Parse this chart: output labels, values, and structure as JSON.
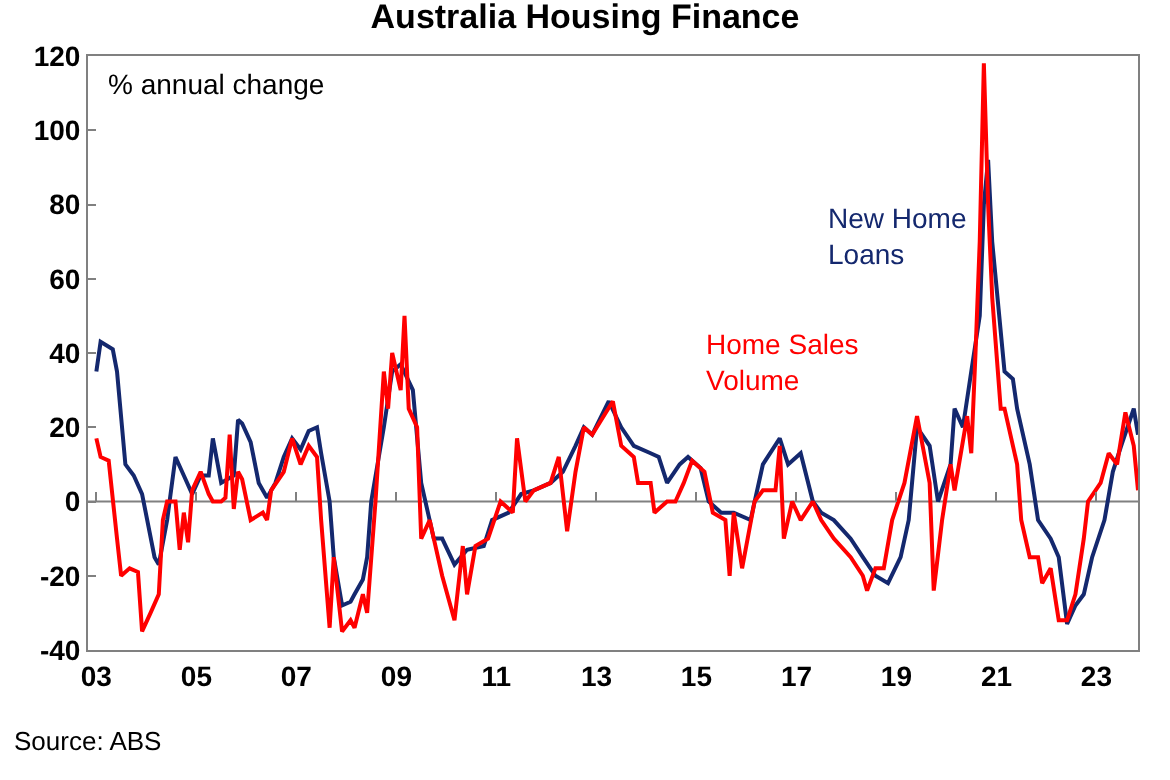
{
  "chart_data": {
    "type": "line",
    "title": "Australia Housing Finance",
    "ylabel": "% annual change",
    "annotations": [
      "Source: ABS"
    ],
    "xlim": [
      "2002-11",
      "2023-11"
    ],
    "xticks": [
      {
        "value": "2003-01",
        "label": "03"
      },
      {
        "value": "2005-01",
        "label": "05"
      },
      {
        "value": "2007-01",
        "label": "07"
      },
      {
        "value": "2009-01",
        "label": "09"
      },
      {
        "value": "2011-01",
        "label": "11"
      },
      {
        "value": "2013-01",
        "label": "13"
      },
      {
        "value": "2015-01",
        "label": "15"
      },
      {
        "value": "2017-01",
        "label": "17"
      },
      {
        "value": "2019-01",
        "label": "19"
      },
      {
        "value": "2021-01",
        "label": "21"
      },
      {
        "value": "2023-01",
        "label": "23"
      }
    ],
    "ylim": [
      -40,
      120
    ],
    "yticks": [
      -40,
      -20,
      0,
      20,
      40,
      60,
      80,
      100,
      120
    ],
    "ref_lines": [
      {
        "axis": "y",
        "value": 0,
        "color": "#808080"
      }
    ],
    "marker": "none",
    "line_style": "solid",
    "series": [
      {
        "name": "New Home Loans",
        "color": "#14286e",
        "x": [
          "2003-01",
          "2003-02",
          "2003-05",
          "2003-06",
          "2003-08",
          "2003-10",
          "2003-12",
          "2004-03",
          "2004-04",
          "2004-06",
          "2004-08",
          "2004-10",
          "2004-12",
          "2005-02",
          "2005-04",
          "2005-05",
          "2005-07",
          "2005-10",
          "2005-11",
          "2005-12",
          "2006-02",
          "2006-04",
          "2006-06",
          "2006-08",
          "2006-10",
          "2006-12",
          "2007-02",
          "2007-04",
          "2007-06",
          "2007-07",
          "2007-09",
          "2007-10",
          "2007-12",
          "2008-02",
          "2008-03",
          "2008-05",
          "2008-06",
          "2008-07",
          "2008-10",
          "2008-12",
          "2009-02",
          "2009-05",
          "2009-07",
          "2009-10",
          "2009-12",
          "2010-03",
          "2010-06",
          "2010-10",
          "2010-12",
          "2011-04",
          "2011-07",
          "2011-10",
          "2012-02",
          "2012-05",
          "2012-08",
          "2012-10",
          "2012-12",
          "2013-04",
          "2013-07",
          "2013-10",
          "2014-02",
          "2014-04",
          "2014-06",
          "2014-09",
          "2014-11",
          "2015-02",
          "2015-04",
          "2015-07",
          "2015-10",
          "2016-02",
          "2016-05",
          "2016-09",
          "2016-11",
          "2017-02",
          "2017-05",
          "2017-07",
          "2017-10",
          "2018-02",
          "2018-05",
          "2018-08",
          "2018-11",
          "2019-02",
          "2019-04",
          "2019-06",
          "2019-09",
          "2019-11",
          "2020-02",
          "2020-03",
          "2020-05",
          "2020-07",
          "2020-09",
          "2020-10",
          "2020-11",
          "2020-12",
          "2021-03",
          "2021-05",
          "2021-06",
          "2021-09",
          "2021-11",
          "2022-02",
          "2022-04",
          "2022-06",
          "2022-08",
          "2022-10",
          "2022-12",
          "2023-03",
          "2023-05",
          "2023-07",
          "2023-10",
          "2023-11"
        ],
        "values": [
          35,
          43,
          41,
          35,
          10,
          7,
          2,
          -15,
          -17,
          -5,
          12,
          7,
          2,
          7,
          7,
          17,
          5,
          7,
          22,
          21,
          16,
          5,
          1,
          5,
          12,
          17,
          14,
          19,
          20,
          13,
          0,
          -15,
          -28,
          -27,
          -25,
          -21,
          -15,
          0,
          20,
          35,
          37,
          30,
          5,
          -10,
          -10,
          -17,
          -13,
          -12,
          -5,
          -3,
          2,
          3,
          5,
          8,
          15,
          20,
          18,
          27,
          20,
          15,
          13,
          12,
          5,
          10,
          12,
          9,
          0,
          -3,
          -3,
          -5,
          10,
          17,
          10,
          13,
          0,
          -3,
          -5,
          -10,
          -15,
          -20,
          -22,
          -15,
          -5,
          20,
          15,
          0,
          10,
          25,
          20,
          35,
          50,
          80,
          92,
          70,
          35,
          33,
          25,
          10,
          -5,
          -10,
          -15,
          -33,
          -28,
          -25,
          -15,
          -5,
          8,
          15,
          25,
          18
        ]
      },
      {
        "name": "Home Sales Volume",
        "color": "#ff0000",
        "x": [
          "2003-01",
          "2003-02",
          "2003-04",
          "2003-06",
          "2003-07",
          "2003-09",
          "2003-11",
          "2003-12",
          "2004-02",
          "2004-04",
          "2004-05",
          "2004-06",
          "2004-08",
          "2004-09",
          "2004-10",
          "2004-11",
          "2004-12",
          "2005-02",
          "2005-04",
          "2005-05",
          "2005-07",
          "2005-08",
          "2005-09",
          "2005-10",
          "2005-11",
          "2005-12",
          "2006-02",
          "2006-05",
          "2006-06",
          "2006-07",
          "2006-10",
          "2006-12",
          "2007-02",
          "2007-04",
          "2007-06",
          "2007-07",
          "2007-09",
          "2007-10",
          "2007-12",
          "2008-02",
          "2008-03",
          "2008-05",
          "2008-06",
          "2008-08",
          "2008-10",
          "2008-11",
          "2008-12",
          "2009-02",
          "2009-03",
          "2009-04",
          "2009-06",
          "2009-07",
          "2009-09",
          "2009-10",
          "2009-12",
          "2010-03",
          "2010-05",
          "2010-06",
          "2010-08",
          "2010-11",
          "2011-02",
          "2011-05",
          "2011-06",
          "2011-08",
          "2011-10",
          "2012-02",
          "2012-04",
          "2012-06",
          "2012-08",
          "2012-10",
          "2012-12",
          "2013-05",
          "2013-07",
          "2013-10",
          "2013-11",
          "2014-02",
          "2014-03",
          "2014-06",
          "2014-08",
          "2014-10",
          "2014-12",
          "2015-03",
          "2015-05",
          "2015-08",
          "2015-09",
          "2015-10",
          "2015-12",
          "2016-03",
          "2016-05",
          "2016-08",
          "2016-09",
          "2016-10",
          "2016-12",
          "2017-02",
          "2017-05",
          "2017-07",
          "2017-10",
          "2018-02",
          "2018-05",
          "2018-06",
          "2018-08",
          "2018-10",
          "2018-12",
          "2019-03",
          "2019-06",
          "2019-09",
          "2019-10",
          "2019-12",
          "2020-02",
          "2020-03",
          "2020-06",
          "2020-07",
          "2020-08",
          "2020-09",
          "2020-10",
          "2020-11",
          "2020-12",
          "2021-02",
          "2021-03",
          "2021-06",
          "2021-07",
          "2021-09",
          "2021-11",
          "2021-12",
          "2022-02",
          "2022-04",
          "2022-06",
          "2022-08",
          "2022-10",
          "2022-11",
          "2023-02",
          "2023-04",
          "2023-06",
          "2023-08",
          "2023-10",
          "2023-11"
        ],
        "values": [
          17,
          12,
          11,
          -10,
          -20,
          -18,
          -19,
          -35,
          -30,
          -25,
          -5,
          0,
          0,
          -13,
          -3,
          -11,
          3,
          8,
          2,
          0,
          0,
          1,
          18,
          -2,
          8,
          6,
          -5,
          -3,
          -5,
          3,
          8,
          17,
          10,
          15,
          12,
          -5,
          -34,
          -15,
          -35,
          -32,
          -34,
          -25,
          -30,
          0,
          35,
          25,
          40,
          30,
          50,
          25,
          20,
          -10,
          -5,
          -10,
          -20,
          -32,
          -12,
          -25,
          -12,
          -10,
          0,
          -3,
          17,
          0,
          3,
          5,
          12,
          -8,
          8,
          20,
          18,
          27,
          15,
          12,
          5,
          5,
          -3,
          0,
          0,
          5,
          11,
          8,
          -3,
          -5,
          -20,
          -3,
          -18,
          0,
          3,
          3,
          15,
          -10,
          0,
          -5,
          0,
          -5,
          -10,
          -15,
          -20,
          -24,
          -18,
          -18,
          -5,
          5,
          23,
          5,
          -24,
          -5,
          10,
          3,
          23,
          13,
          40,
          70,
          118,
          80,
          55,
          25,
          25,
          10,
          -5,
          -15,
          -15,
          -22,
          -18,
          -32,
          -32,
          -25,
          -10,
          0,
          5,
          13,
          10,
          24,
          15,
          3
        ]
      }
    ]
  }
}
